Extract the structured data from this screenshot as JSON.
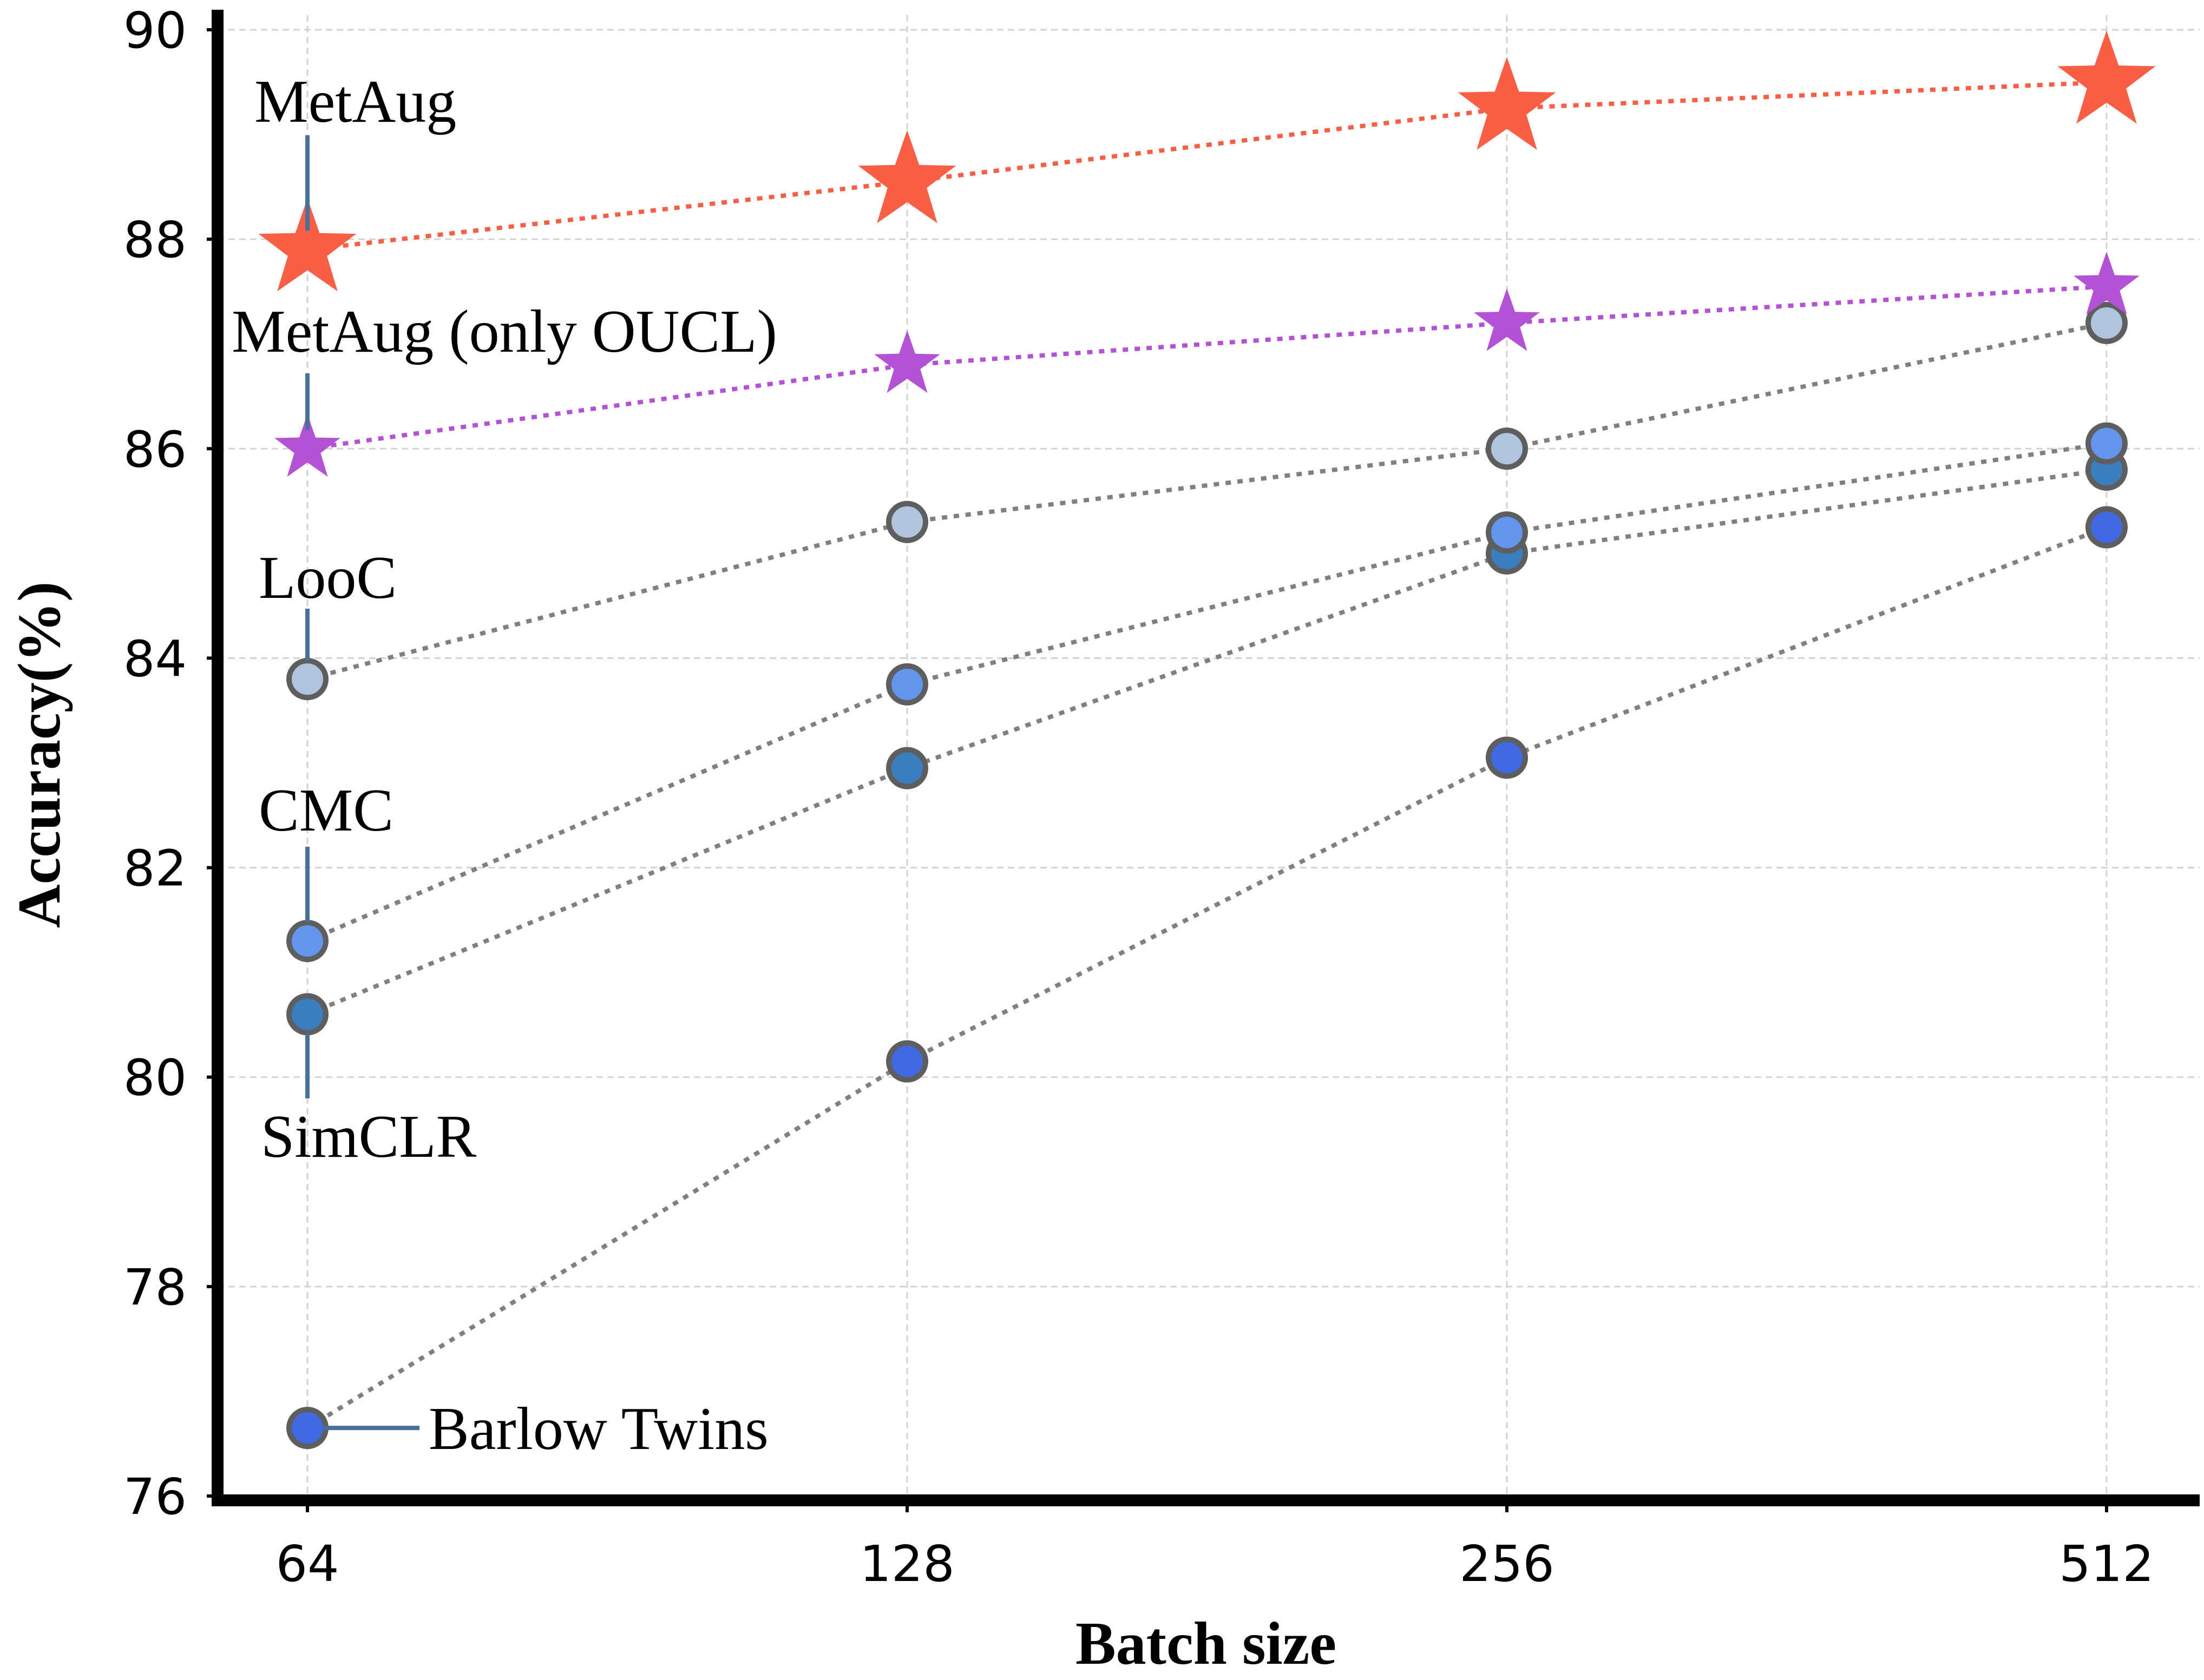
{
  "chart_data": {
    "type": "line",
    "title": "",
    "xlabel": "Batch size",
    "ylabel": "Accuracy(%)",
    "categories": [
      "64",
      "128",
      "256",
      "512"
    ],
    "ylim": [
      76,
      90
    ],
    "yticks": [
      76,
      78,
      80,
      82,
      84,
      86,
      88,
      90
    ],
    "grid": true,
    "series": [
      {
        "name": "MetAug",
        "marker": "star",
        "color": "#fa5f45",
        "line_color": "#fa5f45",
        "values": [
          87.9,
          88.55,
          89.25,
          89.5
        ]
      },
      {
        "name": "MetAug (only OUCL)",
        "marker": "star",
        "color": "#b452d6",
        "line_color": "#b452d6",
        "values": [
          86.0,
          86.8,
          87.2,
          87.55
        ]
      },
      {
        "name": "LooC",
        "marker": "circle",
        "color": "#b0c4de",
        "line_color": "#808080",
        "values": [
          83.8,
          85.3,
          86.0,
          87.2
        ]
      },
      {
        "name": "CMC",
        "marker": "circle",
        "color": "#6495ed",
        "line_color": "#808080",
        "values": [
          81.3,
          83.75,
          85.2,
          86.05
        ]
      },
      {
        "name": "SimCLR",
        "marker": "circle",
        "color": "#3a7ec0",
        "line_color": "#808080",
        "values": [
          80.6,
          82.95,
          85.0,
          85.8
        ]
      },
      {
        "name": "Barlow Twins",
        "marker": "circle",
        "color": "#4169e1",
        "line_color": "#808080",
        "values": [
          76.65,
          80.15,
          83.05,
          85.25
        ]
      }
    ]
  }
}
